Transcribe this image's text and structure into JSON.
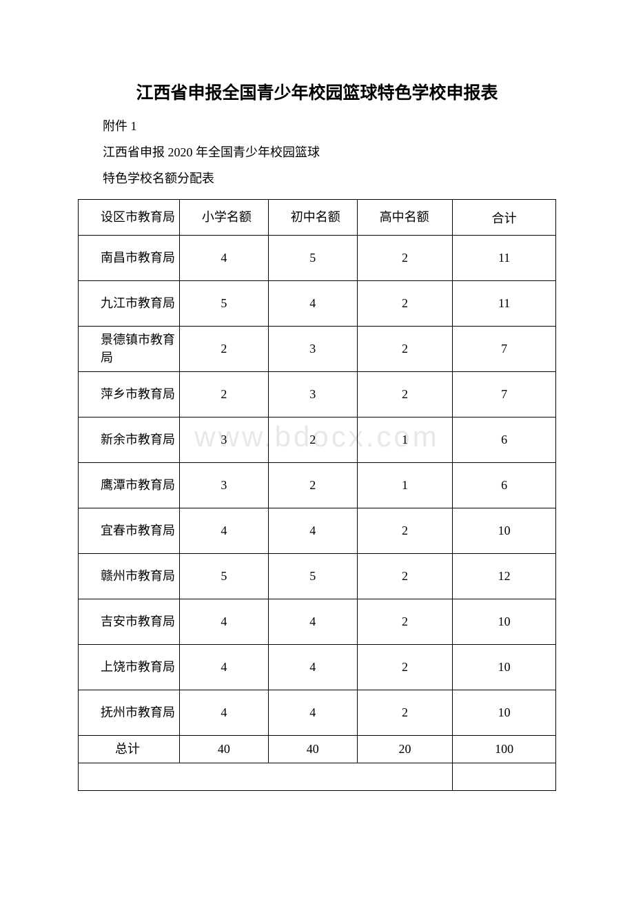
{
  "title": "江西省申报全国青少年校园篮球特色学校申报表",
  "attachment_label": "附件 1",
  "subtitle_line1": "江西省申报 2020 年全国青少年校园篮球",
  "subtitle_line2": "特色学校名额分配表",
  "watermark_text": "www.bdocx.com",
  "table": {
    "columns": {
      "district": "设区市教育局",
      "elementary": "小学名额",
      "middle": "初中名额",
      "high": "高中名额",
      "total": "合计"
    },
    "rows": [
      {
        "district": "南昌市教育局",
        "elementary": "4",
        "middle": "5",
        "high": "2",
        "total": "11"
      },
      {
        "district": "九江市教育局",
        "elementary": "5",
        "middle": "4",
        "high": "2",
        "total": "11"
      },
      {
        "district": "景德镇市教育局",
        "elementary": "2",
        "middle": "3",
        "high": "2",
        "total": "7"
      },
      {
        "district": "萍乡市教育局",
        "elementary": "2",
        "middle": "3",
        "high": "2",
        "total": "7"
      },
      {
        "district": "新余市教育局",
        "elementary": "3",
        "middle": "2",
        "high": "1",
        "total": "6"
      },
      {
        "district": "鹰潭市教育局",
        "elementary": "3",
        "middle": "2",
        "high": "1",
        "total": "6"
      },
      {
        "district": "宜春市教育局",
        "elementary": "4",
        "middle": "4",
        "high": "2",
        "total": "10"
      },
      {
        "district": "赣州市教育局",
        "elementary": "5",
        "middle": "5",
        "high": "2",
        "total": "12"
      },
      {
        "district": "吉安市教育局",
        "elementary": "4",
        "middle": "4",
        "high": "2",
        "total": "10"
      },
      {
        "district": "上饶市教育局",
        "elementary": "4",
        "middle": "4",
        "high": "2",
        "total": "10"
      },
      {
        "district": "抚州市教育局",
        "elementary": "4",
        "middle": "4",
        "high": "2",
        "total": "10"
      }
    ],
    "total_row": {
      "district": "总计",
      "elementary": "40",
      "middle": "40",
      "high": "20",
      "total": "100"
    }
  },
  "styles": {
    "background_color": "#ffffff",
    "border_color": "#000000",
    "text_color": "#000000",
    "watermark_color": "#e8e8e8",
    "title_fontsize": 25,
    "body_fontsize": 18,
    "watermark_fontsize": 42
  }
}
